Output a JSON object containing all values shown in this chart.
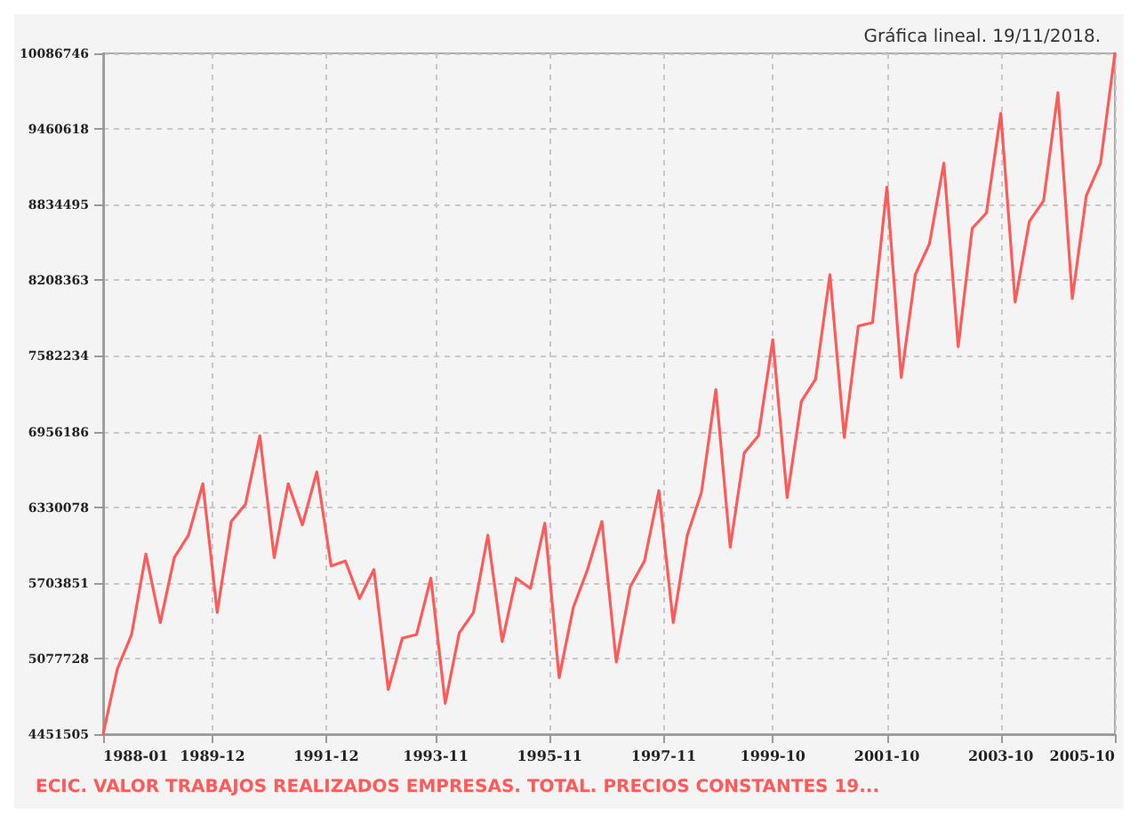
{
  "chart_data": {
    "type": "line",
    "title": "Gráfica lineal. 19/11/2018.",
    "x": [
      "1988-01",
      "1988-04",
      "1988-07",
      "1988-10",
      "1989-01",
      "1989-04",
      "1989-07",
      "1989-10",
      "1990-01",
      "1990-04",
      "1990-07",
      "1990-10",
      "1991-01",
      "1991-04",
      "1991-07",
      "1991-10",
      "1992-01",
      "1992-04",
      "1992-07",
      "1992-10",
      "1993-01",
      "1993-04",
      "1993-07",
      "1993-10",
      "1994-01",
      "1994-04",
      "1994-07",
      "1994-10",
      "1995-01",
      "1995-04",
      "1995-07",
      "1995-10",
      "1996-01",
      "1996-04",
      "1996-07",
      "1996-10",
      "1997-01",
      "1997-04",
      "1997-07",
      "1997-10",
      "1998-01",
      "1998-04",
      "1998-07",
      "1998-10",
      "1999-01",
      "1999-04",
      "1999-07",
      "1999-10",
      "2000-01",
      "2000-04",
      "2000-07",
      "2000-10",
      "2001-01",
      "2001-04",
      "2001-07",
      "2001-10",
      "2002-01",
      "2002-04",
      "2002-07",
      "2002-10",
      "2003-01",
      "2003-04",
      "2003-07",
      "2003-10",
      "2004-01",
      "2004-04",
      "2004-07",
      "2004-10",
      "2005-01",
      "2005-04",
      "2005-07",
      "2005-10"
    ],
    "series": [
      {
        "name": "ECIC. VALOR TRABAJOS REALIZADOS EMPRESAS. TOTAL. PRECIOS CONSTANTES 19...",
        "color": "#ff5a5a",
        "values": [
          4451505,
          4991000,
          5275000,
          5942000,
          5374000,
          5913000,
          6098000,
          6524000,
          5459000,
          6212000,
          6354000,
          6921000,
          5913000,
          6524000,
          6183000,
          6623000,
          5843000,
          5885000,
          5573000,
          5814000,
          4821000,
          5246000,
          5275000,
          5743000,
          4707000,
          5289000,
          5459000,
          6098000,
          5218000,
          5743000,
          5658000,
          6197000,
          4920000,
          5502000,
          5814000,
          6212000,
          5048000,
          5672000,
          5885000,
          6467000,
          5374000,
          6098000,
          6453000,
          7304000,
          5999000,
          6779000,
          6921000,
          7716000,
          6410000,
          7205000,
          7390000,
          8255000,
          6907000,
          7830000,
          7858000,
          8979000,
          7404000,
          8255000,
          8511000,
          9178000,
          7659000,
          8639000,
          8766000,
          9590000,
          8028000,
          8696000,
          8866000,
          9760000,
          8057000,
          8908000,
          9178000,
          10086746
        ]
      }
    ],
    "xlim": [
      "1988-01",
      "2005-10"
    ],
    "xticks": [
      "1988-01",
      "1989-12",
      "1991-12",
      "1993-11",
      "1995-11",
      "1997-11",
      "1999-10",
      "2001-10",
      "2003-10",
      "2005-10"
    ],
    "ylim": [
      4451505,
      10086746
    ],
    "yticks": [
      4451505,
      5077728,
      5703851,
      6330078,
      6956186,
      7582234,
      8208363,
      8834495,
      9460618,
      10086746
    ],
    "grid": true,
    "legend": "bottom",
    "marker": "none",
    "line_style": "solid"
  }
}
